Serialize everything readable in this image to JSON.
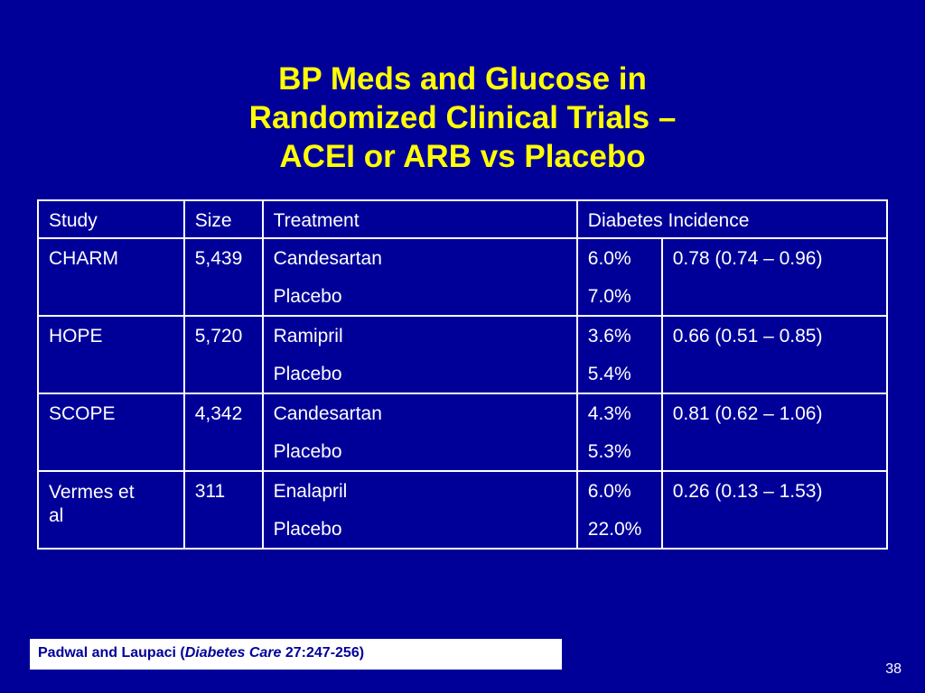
{
  "title": {
    "line1": "BP Meds and Glucose in",
    "line2": "Randomized Clinical Trials –",
    "line3": "ACEI or ARB vs Placebo"
  },
  "table": {
    "headers": [
      "Study",
      "Size",
      "Treatment",
      "Diabetes Incidence"
    ],
    "rows": [
      {
        "study": "CHARM",
        "size": "5,439",
        "treatment": "Candesartan",
        "placebo": "Placebo",
        "incidence_treatment": "6.0%",
        "incidence_placebo": "7.0%",
        "ratio": "0.78 (0.74 – 0.96)"
      },
      {
        "study": "HOPE",
        "size": "5,720",
        "treatment": "Ramipril",
        "placebo": "Placebo",
        "incidence_treatment": "3.6%",
        "incidence_placebo": "5.4%",
        "ratio": "0.66 (0.51 – 0.85)"
      },
      {
        "study": "SCOPE",
        "size": "4,342",
        "treatment": "Candesartan",
        "placebo": "Placebo",
        "incidence_treatment": "4.3%",
        "incidence_placebo": "5.3%",
        "ratio": "0.81 (0.62 – 1.06)"
      },
      {
        "study": "Vermes et al",
        "study_line1": "Vermes et",
        "study_line2": "al",
        "size": "311",
        "treatment": "Enalapril",
        "placebo": "Placebo",
        "incidence_treatment": "6.0%",
        "incidence_placebo": "22.0%",
        "ratio": "0.26 (0.13 – 1.53)"
      }
    ]
  },
  "citation": {
    "authors": "Padwal and Laupaci (",
    "journal": "Diabetes Care",
    "ref": " 27:247-256)"
  },
  "page_number": "38",
  "colors": {
    "background": "#000099",
    "title": "#ffff00",
    "text": "#ffffff"
  }
}
